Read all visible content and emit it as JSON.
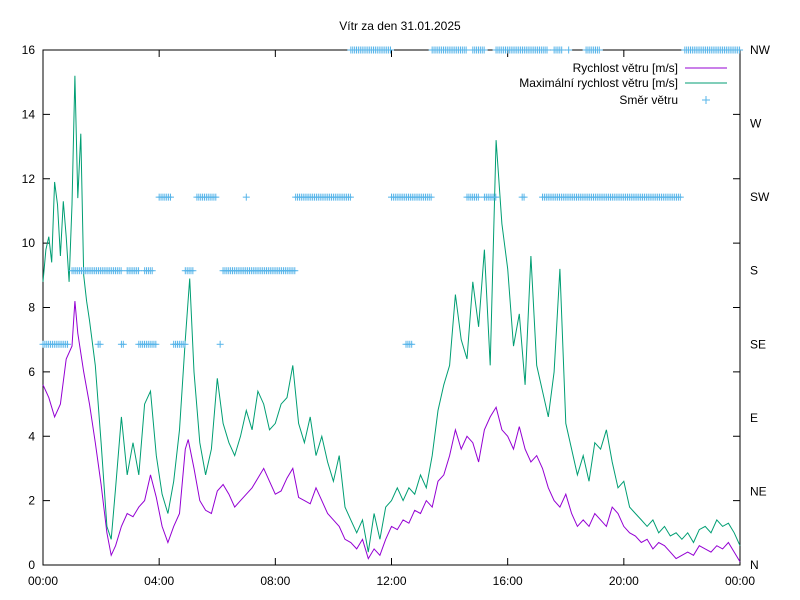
{
  "chart_data": {
    "type": "line",
    "title": "Vítr za den 31.01.2025",
    "x_tick_labels": [
      "00:00",
      "04:00",
      "08:00",
      "12:00",
      "16:00",
      "20:00",
      "00:00"
    ],
    "x_range_hours": [
      0,
      24
    ],
    "y_left_range": [
      0,
      16
    ],
    "y_left_ticks": [
      "0",
      "2",
      "4",
      "6",
      "8",
      "10",
      "12",
      "14",
      "16"
    ],
    "y_right_ticks": [
      "N",
      "NE",
      "E",
      "SE",
      "S",
      "SW",
      "W",
      "NW"
    ],
    "legend_position": "top-right",
    "grid": false,
    "series": [
      {
        "name": "Rychlost větru [m/s]",
        "color": "#9400d3",
        "style": "line",
        "points": [
          [
            0,
            5.6
          ],
          [
            0.2,
            5.2
          ],
          [
            0.4,
            4.6
          ],
          [
            0.6,
            5.0
          ],
          [
            0.8,
            6.4
          ],
          [
            1.0,
            6.8
          ],
          [
            1.1,
            8.2
          ],
          [
            1.2,
            7.2
          ],
          [
            1.4,
            6.0
          ],
          [
            1.6,
            5.0
          ],
          [
            1.8,
            3.8
          ],
          [
            2.0,
            2.5
          ],
          [
            2.2,
            1.0
          ],
          [
            2.35,
            0.3
          ],
          [
            2.5,
            0.6
          ],
          [
            2.7,
            1.2
          ],
          [
            2.9,
            1.6
          ],
          [
            3.1,
            1.5
          ],
          [
            3.3,
            1.8
          ],
          [
            3.5,
            2.0
          ],
          [
            3.7,
            2.8
          ],
          [
            3.9,
            2.1
          ],
          [
            4.1,
            1.2
          ],
          [
            4.3,
            0.7
          ],
          [
            4.5,
            1.2
          ],
          [
            4.7,
            1.6
          ],
          [
            4.9,
            3.6
          ],
          [
            5.0,
            3.9
          ],
          [
            5.2,
            3.0
          ],
          [
            5.4,
            2.0
          ],
          [
            5.6,
            1.7
          ],
          [
            5.8,
            1.6
          ],
          [
            6.0,
            2.3
          ],
          [
            6.2,
            2.5
          ],
          [
            6.4,
            2.2
          ],
          [
            6.6,
            1.8
          ],
          [
            6.8,
            2.0
          ],
          [
            7.0,
            2.2
          ],
          [
            7.2,
            2.4
          ],
          [
            7.4,
            2.7
          ],
          [
            7.6,
            3.0
          ],
          [
            7.8,
            2.6
          ],
          [
            8.0,
            2.2
          ],
          [
            8.2,
            2.3
          ],
          [
            8.4,
            2.7
          ],
          [
            8.6,
            3.0
          ],
          [
            8.8,
            2.1
          ],
          [
            9.0,
            2.0
          ],
          [
            9.2,
            1.9
          ],
          [
            9.4,
            2.4
          ],
          [
            9.6,
            2.0
          ],
          [
            9.8,
            1.6
          ],
          [
            10.0,
            1.4
          ],
          [
            10.2,
            1.2
          ],
          [
            10.4,
            0.8
          ],
          [
            10.6,
            0.7
          ],
          [
            10.8,
            0.5
          ],
          [
            11.0,
            0.8
          ],
          [
            11.2,
            0.2
          ],
          [
            11.4,
            0.5
          ],
          [
            11.6,
            0.3
          ],
          [
            11.8,
            0.8
          ],
          [
            12.0,
            1.2
          ],
          [
            12.2,
            1.1
          ],
          [
            12.4,
            1.4
          ],
          [
            12.6,
            1.3
          ],
          [
            12.8,
            1.7
          ],
          [
            13.0,
            1.6
          ],
          [
            13.2,
            2.0
          ],
          [
            13.4,
            1.8
          ],
          [
            13.6,
            2.6
          ],
          [
            13.8,
            2.8
          ],
          [
            14.0,
            3.4
          ],
          [
            14.2,
            4.2
          ],
          [
            14.4,
            3.6
          ],
          [
            14.6,
            4.0
          ],
          [
            14.8,
            3.8
          ],
          [
            15.0,
            3.2
          ],
          [
            15.2,
            4.2
          ],
          [
            15.4,
            4.6
          ],
          [
            15.6,
            4.9
          ],
          [
            15.8,
            4.2
          ],
          [
            16.0,
            4.0
          ],
          [
            16.2,
            3.6
          ],
          [
            16.4,
            4.3
          ],
          [
            16.6,
            3.6
          ],
          [
            16.8,
            3.2
          ],
          [
            17.0,
            3.4
          ],
          [
            17.2,
            3.0
          ],
          [
            17.4,
            2.4
          ],
          [
            17.6,
            2.0
          ],
          [
            17.8,
            1.8
          ],
          [
            18.0,
            2.2
          ],
          [
            18.2,
            1.6
          ],
          [
            18.4,
            1.2
          ],
          [
            18.6,
            1.4
          ],
          [
            18.8,
            1.2
          ],
          [
            19.0,
            1.6
          ],
          [
            19.2,
            1.4
          ],
          [
            19.4,
            1.2
          ],
          [
            19.6,
            1.8
          ],
          [
            19.8,
            1.6
          ],
          [
            20.0,
            1.2
          ],
          [
            20.2,
            1.0
          ],
          [
            20.4,
            0.9
          ],
          [
            20.6,
            0.7
          ],
          [
            20.8,
            0.8
          ],
          [
            21.0,
            0.5
          ],
          [
            21.2,
            0.7
          ],
          [
            21.4,
            0.6
          ],
          [
            21.6,
            0.4
          ],
          [
            21.8,
            0.2
          ],
          [
            22.0,
            0.3
          ],
          [
            22.2,
            0.4
          ],
          [
            22.4,
            0.3
          ],
          [
            22.6,
            0.6
          ],
          [
            22.8,
            0.5
          ],
          [
            23.0,
            0.4
          ],
          [
            23.2,
            0.6
          ],
          [
            23.4,
            0.5
          ],
          [
            23.6,
            0.7
          ],
          [
            23.8,
            0.4
          ],
          [
            24.0,
            0.1
          ]
        ]
      },
      {
        "name": "Maximální rychlost větru [m/s]",
        "color": "#009e73",
        "style": "line",
        "points": [
          [
            0,
            8.8
          ],
          [
            0.1,
            9.8
          ],
          [
            0.2,
            10.2
          ],
          [
            0.3,
            9.4
          ],
          [
            0.4,
            11.9
          ],
          [
            0.5,
            11.2
          ],
          [
            0.6,
            9.6
          ],
          [
            0.7,
            11.3
          ],
          [
            0.8,
            10.2
          ],
          [
            0.9,
            8.8
          ],
          [
            1.0,
            11.2
          ],
          [
            1.1,
            15.2
          ],
          [
            1.2,
            11.4
          ],
          [
            1.3,
            13.4
          ],
          [
            1.4,
            9.0
          ],
          [
            1.5,
            8.2
          ],
          [
            1.6,
            7.6
          ],
          [
            1.8,
            6.2
          ],
          [
            2.0,
            3.8
          ],
          [
            2.2,
            1.2
          ],
          [
            2.35,
            0.8
          ],
          [
            2.5,
            2.4
          ],
          [
            2.7,
            4.6
          ],
          [
            2.9,
            2.8
          ],
          [
            3.1,
            3.8
          ],
          [
            3.3,
            2.8
          ],
          [
            3.5,
            5.0
          ],
          [
            3.7,
            5.4
          ],
          [
            3.9,
            3.4
          ],
          [
            4.1,
            2.2
          ],
          [
            4.3,
            1.6
          ],
          [
            4.5,
            2.6
          ],
          [
            4.7,
            4.2
          ],
          [
            4.9,
            7.0
          ],
          [
            5.05,
            8.9
          ],
          [
            5.2,
            6.0
          ],
          [
            5.4,
            3.8
          ],
          [
            5.6,
            2.8
          ],
          [
            5.8,
            3.6
          ],
          [
            6.0,
            5.8
          ],
          [
            6.2,
            4.4
          ],
          [
            6.4,
            3.8
          ],
          [
            6.6,
            3.4
          ],
          [
            6.8,
            4.0
          ],
          [
            7.0,
            4.8
          ],
          [
            7.2,
            4.2
          ],
          [
            7.4,
            5.4
          ],
          [
            7.6,
            5.0
          ],
          [
            7.8,
            4.2
          ],
          [
            8.0,
            4.4
          ],
          [
            8.2,
            5.0
          ],
          [
            8.4,
            5.2
          ],
          [
            8.6,
            6.2
          ],
          [
            8.8,
            4.4
          ],
          [
            9.0,
            3.8
          ],
          [
            9.2,
            4.6
          ],
          [
            9.4,
            3.4
          ],
          [
            9.6,
            4.0
          ],
          [
            9.8,
            3.2
          ],
          [
            10.0,
            2.6
          ],
          [
            10.2,
            3.4
          ],
          [
            10.4,
            1.8
          ],
          [
            10.6,
            1.4
          ],
          [
            10.8,
            1.0
          ],
          [
            11.0,
            1.4
          ],
          [
            11.2,
            0.4
          ],
          [
            11.4,
            1.6
          ],
          [
            11.6,
            0.8
          ],
          [
            11.8,
            1.8
          ],
          [
            12.0,
            2.0
          ],
          [
            12.2,
            2.4
          ],
          [
            12.4,
            2.0
          ],
          [
            12.6,
            2.4
          ],
          [
            12.8,
            2.2
          ],
          [
            13.0,
            2.8
          ],
          [
            13.2,
            2.4
          ],
          [
            13.4,
            3.4
          ],
          [
            13.6,
            4.8
          ],
          [
            13.8,
            5.6
          ],
          [
            14.0,
            6.2
          ],
          [
            14.2,
            8.4
          ],
          [
            14.4,
            7.0
          ],
          [
            14.6,
            6.4
          ],
          [
            14.8,
            8.8
          ],
          [
            15.0,
            7.4
          ],
          [
            15.2,
            9.8
          ],
          [
            15.4,
            6.2
          ],
          [
            15.6,
            13.2
          ],
          [
            15.8,
            10.6
          ],
          [
            16.0,
            9.2
          ],
          [
            16.2,
            6.8
          ],
          [
            16.4,
            7.8
          ],
          [
            16.6,
            5.6
          ],
          [
            16.8,
            9.6
          ],
          [
            17.0,
            6.2
          ],
          [
            17.2,
            5.4
          ],
          [
            17.4,
            4.6
          ],
          [
            17.6,
            6.0
          ],
          [
            17.8,
            9.2
          ],
          [
            18.0,
            4.4
          ],
          [
            18.2,
            3.6
          ],
          [
            18.4,
            2.8
          ],
          [
            18.6,
            3.4
          ],
          [
            18.8,
            2.6
          ],
          [
            19.0,
            3.8
          ],
          [
            19.2,
            3.6
          ],
          [
            19.4,
            4.2
          ],
          [
            19.6,
            3.2
          ],
          [
            19.8,
            2.4
          ],
          [
            20.0,
            2.6
          ],
          [
            20.2,
            1.8
          ],
          [
            20.4,
            1.6
          ],
          [
            20.6,
            1.4
          ],
          [
            20.8,
            1.2
          ],
          [
            21.0,
            1.4
          ],
          [
            21.2,
            1.0
          ],
          [
            21.4,
            1.2
          ],
          [
            21.6,
            0.9
          ],
          [
            21.8,
            1.0
          ],
          [
            22.0,
            0.8
          ],
          [
            22.2,
            1.0
          ],
          [
            22.4,
            0.7
          ],
          [
            22.6,
            1.1
          ],
          [
            22.8,
            1.2
          ],
          [
            23.0,
            1.0
          ],
          [
            23.2,
            1.4
          ],
          [
            23.4,
            1.2
          ],
          [
            23.6,
            1.3
          ],
          [
            23.8,
            1.0
          ],
          [
            24.0,
            0.6
          ]
        ]
      },
      {
        "name": "Směr větru",
        "color": "#56b4e9",
        "style": "points",
        "axis": "right",
        "segments": [
          [
            "SE",
            0.0,
            0.9
          ],
          [
            "S",
            1.0,
            2.7
          ],
          [
            "S",
            2.9,
            3.3
          ],
          [
            "S",
            3.5,
            3.8
          ],
          [
            "SE",
            1.9,
            2.0
          ],
          [
            "SE",
            2.7,
            2.8
          ],
          [
            "SE",
            3.3,
            3.9
          ],
          [
            "SW",
            4.0,
            4.4
          ],
          [
            "SE",
            4.5,
            4.9
          ],
          [
            "S",
            4.9,
            5.2
          ],
          [
            "SW",
            5.3,
            6.0
          ],
          [
            "SE",
            6.1,
            6.1
          ],
          [
            "SW",
            7.0,
            7.0
          ],
          [
            "S",
            6.2,
            8.7
          ],
          [
            "SW",
            8.7,
            10.6
          ],
          [
            "NW",
            10.6,
            12.0
          ],
          [
            "SW",
            12.0,
            13.4
          ],
          [
            "SE",
            12.5,
            12.7
          ],
          [
            "NW",
            13.4,
            14.6
          ],
          [
            "SW",
            14.6,
            15.0
          ],
          [
            "NW",
            14.8,
            15.2
          ],
          [
            "SW",
            15.2,
            15.6
          ],
          [
            "NW",
            15.6,
            17.4
          ],
          [
            "SW",
            16.5,
            16.6
          ],
          [
            "SW",
            17.2,
            22.0
          ],
          [
            "NW",
            17.6,
            17.9
          ],
          [
            "NW",
            18.1,
            18.1
          ],
          [
            "NW",
            18.7,
            19.2
          ],
          [
            "NW",
            22.1,
            24.0
          ]
        ]
      }
    ]
  }
}
